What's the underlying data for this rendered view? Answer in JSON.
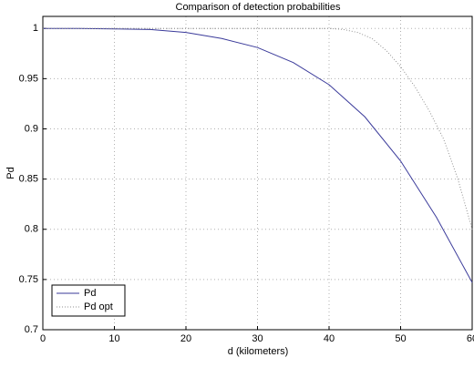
{
  "chart_data": {
    "type": "line",
    "title": "Comparison of detection probabilities",
    "xlabel": "d (kilometers)",
    "ylabel": "Pd",
    "xlim": [
      0,
      60
    ],
    "ylim": [
      0.7,
      1.012
    ],
    "xticks": [
      0,
      10,
      20,
      30,
      40,
      50,
      60
    ],
    "yticks": [
      0.7,
      0.75,
      0.8,
      0.85,
      0.9,
      0.95,
      1
    ],
    "grid": true,
    "legend": "lower left",
    "series": [
      {
        "name": "Pd",
        "color": "#3a3a9a",
        "linestyle": "solid",
        "x": [
          0,
          5,
          10,
          15,
          20,
          25,
          30,
          35,
          40,
          45,
          50,
          55,
          60
        ],
        "values": [
          1,
          1,
          0.9995,
          0.999,
          0.996,
          0.99,
          0.981,
          0.966,
          0.944,
          0.912,
          0.868,
          0.812,
          0.747
        ]
      },
      {
        "name": "Pd opt",
        "color": "#909090",
        "linestyle": "dotted",
        "x": [
          0,
          10,
          20,
          30,
          40,
          42,
          44,
          46,
          48,
          50,
          52,
          54,
          56,
          58,
          60
        ],
        "values": [
          1,
          1,
          1,
          1,
          1,
          0.999,
          0.996,
          0.99,
          0.978,
          0.962,
          0.942,
          0.918,
          0.89,
          0.85,
          0.8
        ]
      }
    ]
  }
}
